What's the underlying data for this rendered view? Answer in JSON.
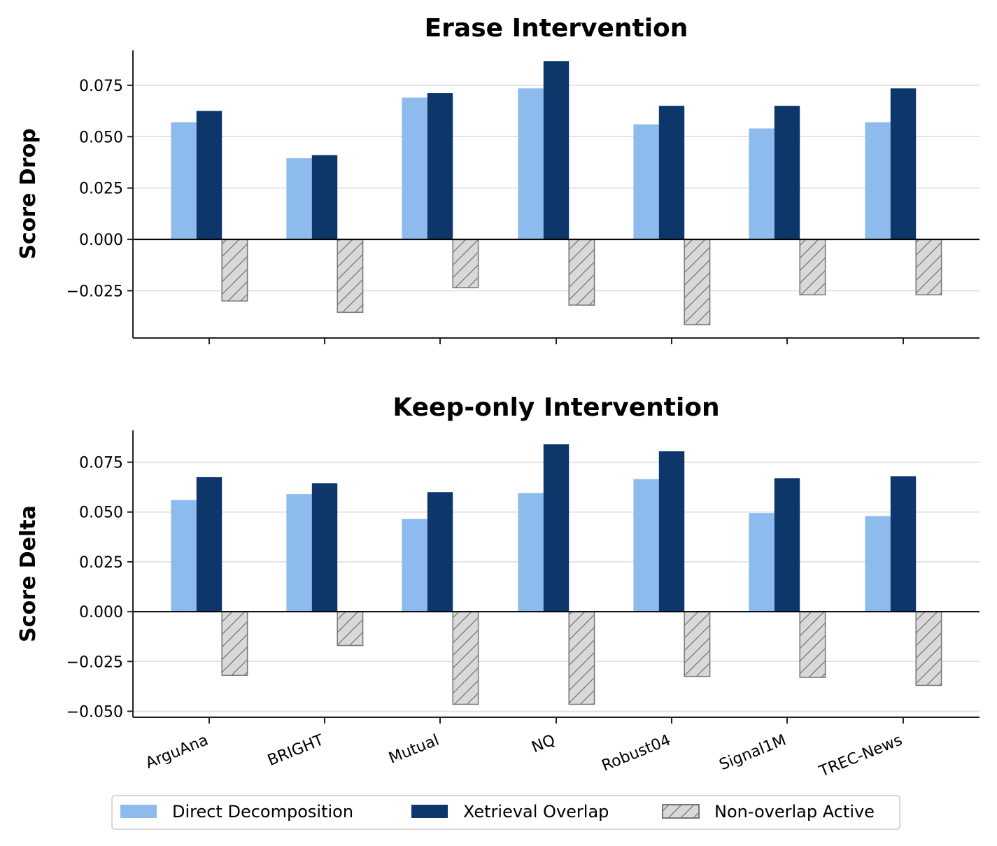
{
  "chart_data": [
    {
      "type": "bar",
      "title": "Erase Intervention",
      "ylabel": "Score Drop",
      "xlabel": "",
      "ylim": [
        -0.048,
        0.092
      ],
      "yticks": [
        -0.025,
        0.0,
        0.025,
        0.05,
        0.075
      ],
      "ytick_labels": [
        "−0.025",
        "0.000",
        "0.025",
        "0.050",
        "0.075"
      ],
      "grid": "horizontal",
      "categories": [
        "ArguAna",
        "BRIGHT",
        "Mutual",
        "NQ",
        "Robust04",
        "Signal1M",
        "TREC-News"
      ],
      "series": [
        {
          "name": "Direct Decomposition",
          "values": [
            0.057,
            0.0395,
            0.069,
            0.0735,
            0.056,
            0.054,
            0.057
          ]
        },
        {
          "name": "Xetrieval Overlap",
          "values": [
            0.0625,
            0.041,
            0.0712,
            0.0868,
            0.065,
            0.065,
            0.0735
          ]
        },
        {
          "name": "Non-overlap Active",
          "values": [
            -0.03,
            -0.0355,
            -0.0235,
            -0.032,
            -0.0415,
            -0.027,
            -0.027
          ]
        }
      ]
    },
    {
      "type": "bar",
      "title": "Keep-only Intervention",
      "ylabel": "Score Delta",
      "xlabel": "",
      "ylim": [
        -0.053,
        0.091
      ],
      "yticks": [
        -0.05,
        -0.025,
        0.0,
        0.025,
        0.05,
        0.075
      ],
      "ytick_labels": [
        "−0.050",
        "−0.025",
        "0.000",
        "0.025",
        "0.050",
        "0.075"
      ],
      "grid": "horizontal",
      "categories": [
        "ArguAna",
        "BRIGHT",
        "Mutual",
        "NQ",
        "Robust04",
        "Signal1M",
        "TREC-News"
      ],
      "series": [
        {
          "name": "Direct Decomposition",
          "values": [
            0.056,
            0.059,
            0.0465,
            0.0595,
            0.0665,
            0.0495,
            0.048
          ]
        },
        {
          "name": "Xetrieval Overlap",
          "values": [
            0.0675,
            0.0645,
            0.06,
            0.084,
            0.0805,
            0.067,
            0.068
          ]
        },
        {
          "name": "Non-overlap Active",
          "values": [
            -0.032,
            -0.017,
            -0.0465,
            -0.0465,
            -0.0325,
            -0.033,
            -0.037
          ]
        }
      ]
    }
  ],
  "legend": {
    "placement": "bottom-center",
    "entries": [
      "Direct Decomposition",
      "Xetrieval Overlap",
      "Non-overlap Active"
    ]
  },
  "colors": {
    "direct": "#8dbbee",
    "overlap": "#0d366b",
    "nonoverlap_fill": "#d9d9d9",
    "nonoverlap_edge": "#777777",
    "grid": "#dddddd",
    "axis": "#000000"
  }
}
